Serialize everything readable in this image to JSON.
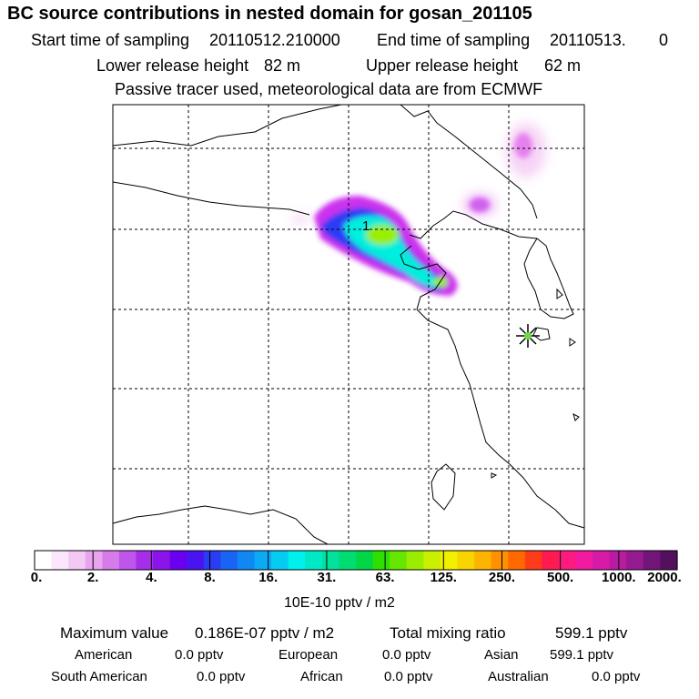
{
  "title": "BC  source contributions in nested domain for gosan_201105",
  "header": {
    "start_label": "Start time of sampling",
    "start_value": "20110512.210000",
    "end_label": "End time of sampling",
    "end_value": "20110513.",
    "end_extra": "0",
    "lower_label": "Lower release height",
    "lower_value": "82 m",
    "upper_label": "Upper release height",
    "upper_value": "62 m",
    "tracer_note": "Passive tracer used, meteorological data are from ECMWF"
  },
  "map": {
    "release_marker_label": "1",
    "receptor": "gosan"
  },
  "colorbar": {
    "unit": "10E-10 pptv / m2",
    "labels": [
      "0.",
      "2.",
      "4.",
      "8.",
      "16.",
      "31.",
      "63.",
      "125.",
      "250.",
      "500.",
      "1000.",
      "2000."
    ],
    "colors": [
      "#ffffff",
      "#fbe6fb",
      "#f3c8f3",
      "#e9a4ef",
      "#d77bea",
      "#bf55ea",
      "#a62ee8",
      "#8a14ea",
      "#6a00f0",
      "#4a14f2",
      "#2a3cf4",
      "#1a64f4",
      "#1088f4",
      "#0aaaf4",
      "#06ccf2",
      "#00f0ee",
      "#00e8c6",
      "#00e29e",
      "#00dc72",
      "#00d648",
      "#2ee000",
      "#66e600",
      "#9aec00",
      "#caf000",
      "#f0f000",
      "#f8d400",
      "#fcb400",
      "#ff9000",
      "#ff6a00",
      "#ff3c1a",
      "#ff1a50",
      "#ff1a80",
      "#f21aa0",
      "#d81aa8",
      "#b81aa0",
      "#961a90",
      "#72167a",
      "#540f5e"
    ],
    "data_color": {
      "low": "#cc33ee",
      "mid": "#00f0ee",
      "high": "#aaee00"
    }
  },
  "stats": {
    "max_label": "Maximum value",
    "max_value": "0.186E-07 pptv / m2",
    "total_label": "Total mixing ratio",
    "total_value": "599.1 pptv",
    "american_label": "American",
    "american_value": "0.0 pptv",
    "european_label": "European",
    "european_value": "0.0 pptv",
    "asian_label": "Asian",
    "asian_value": "599.1 pptv",
    "south_american_label": "South American",
    "south_american_value": "0.0 pptv",
    "african_label": "African",
    "african_value": "0.0 pptv",
    "australian_label": "Australian",
    "australian_value": "0.0 pptv"
  }
}
